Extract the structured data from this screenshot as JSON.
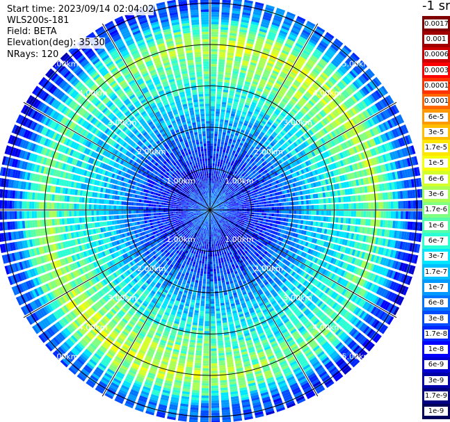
{
  "info": {
    "start_time": "Start time: 2023/09/14 02:04:02",
    "device": "WLS200s-181",
    "field": "Field: BETA",
    "elevation": "Elevation(deg): 35.30",
    "nrays": "NRays: 120"
  },
  "colorbar": {
    "title": "-1 sr",
    "labels": [
      "0.0017",
      "0.001",
      "0.0006",
      "0.0003",
      "0.00017",
      "0.0001",
      "6e-5",
      "3e-5",
      "1.7e-5",
      "1e-5",
      "6e-6",
      "3e-6",
      "1.7e-6",
      "1e-6",
      "6e-7",
      "3e-7",
      "1.7e-7",
      "1e-7",
      "6e-8",
      "3e-8",
      "1.7e-8",
      "1e-8",
      "6e-9",
      "3e-9",
      "1.7e-9",
      "1e-9"
    ],
    "colors": [
      "#7f0000",
      "#a00000",
      "#cc0000",
      "#ff0000",
      "#ff3300",
      "#ff6600",
      "#ff9900",
      "#ffbf00",
      "#ffe600",
      "#f5ff0a",
      "#d4ff2b",
      "#aaff55",
      "#80ff80",
      "#55ffaa",
      "#2bffd4",
      "#00e6ff",
      "#00bfff",
      "#0099ff",
      "#0073ff",
      "#004dff",
      "#0026ff",
      "#0000ff",
      "#0000d0",
      "#0000a8",
      "#000080",
      "#00005a"
    ]
  },
  "chart_data": {
    "type": "heatmap",
    "projection": "polar-ppi",
    "title": "",
    "field": "BETA",
    "units": "-1 sr",
    "n_rays": 120,
    "range_rings_km": [
      1,
      2,
      3,
      4,
      5
    ],
    "range_labels": [
      "1.00km",
      "2.00km",
      "3.00km",
      "4.00km",
      "5.00km"
    ],
    "max_range_km": 5.1,
    "radial_lines_deg": [
      0,
      30,
      60,
      90,
      120,
      150,
      180,
      210,
      240,
      270,
      300,
      330
    ],
    "radial_profile_log10_beta": [
      {
        "range_km": 0.1,
        "value": -7.2
      },
      {
        "range_km": 0.8,
        "value": -7.9
      },
      {
        "range_km": 1.5,
        "value": -7.6
      },
      {
        "range_km": 2.0,
        "value": -7.1
      },
      {
        "range_km": 2.8,
        "value": -6.4
      },
      {
        "range_km": 3.6,
        "value": -6.0
      },
      {
        "range_km": 4.0,
        "value": -5.5
      },
      {
        "range_km": 4.4,
        "value": -6.2
      },
      {
        "range_km": 4.8,
        "value": -7.4
      },
      {
        "range_km": 5.1,
        "value": -7.7
      }
    ]
  }
}
